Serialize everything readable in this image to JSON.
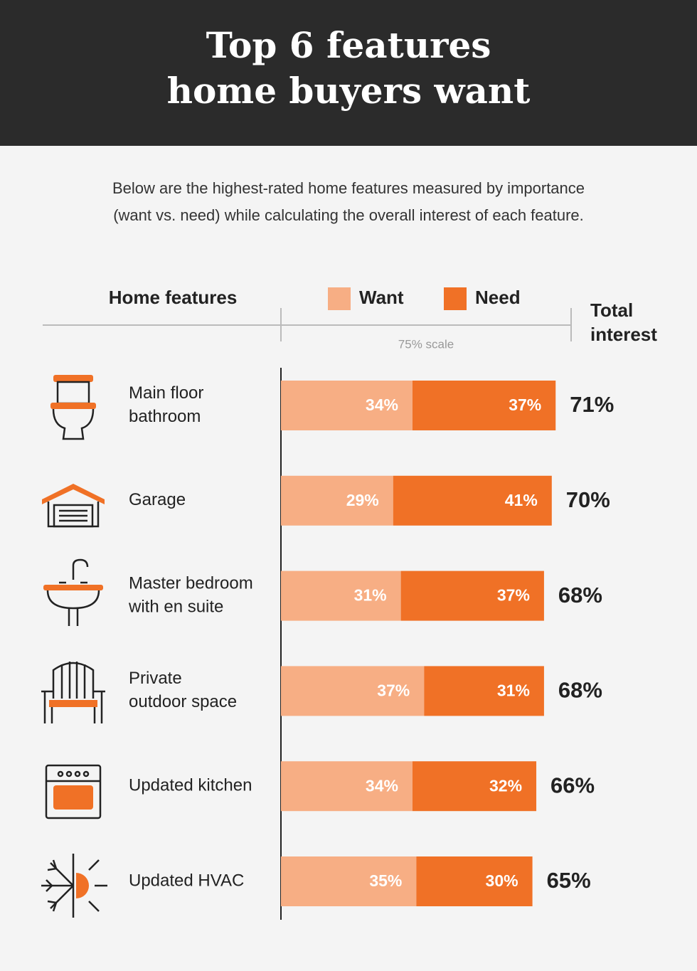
{
  "chart_data": {
    "type": "stacked-barh",
    "title": [
      "Top 6 features",
      "home buyers want"
    ],
    "subtitle": [
      "Below are the highest-rated home features measured by importance",
      "(want vs. need) while calculating the overall interest of each feature."
    ],
    "category_header": "Home features",
    "total_header": [
      "Total",
      "interest"
    ],
    "scale_note": "75% scale",
    "xlim": [
      0,
      75
    ],
    "categories": [
      [
        "Main floor",
        "bathroom"
      ],
      [
        "Garage"
      ],
      [
        "Master bedroom",
        "with en suite"
      ],
      [
        "Private",
        "outdoor space"
      ],
      [
        "Updated kitchen"
      ],
      [
        "Updated HVAC"
      ]
    ],
    "series": [
      {
        "name": "Want",
        "color": "#f7ae84",
        "values": [
          34,
          29,
          31,
          37,
          34,
          35
        ],
        "value_labels": [
          "34%",
          "29%",
          "31%",
          "37%",
          "34%",
          "35%"
        ]
      },
      {
        "name": "Need",
        "color": "#f07126",
        "values": [
          37,
          41,
          37,
          31,
          32,
          30
        ],
        "value_labels": [
          "37%",
          "41%",
          "37%",
          "31%",
          "32%",
          "30%"
        ]
      }
    ],
    "totals": [
      71,
      70,
      68,
      68,
      66,
      65
    ],
    "total_labels": [
      "71%",
      "70%",
      "68%",
      "68%",
      "66%",
      "65%"
    ]
  }
}
